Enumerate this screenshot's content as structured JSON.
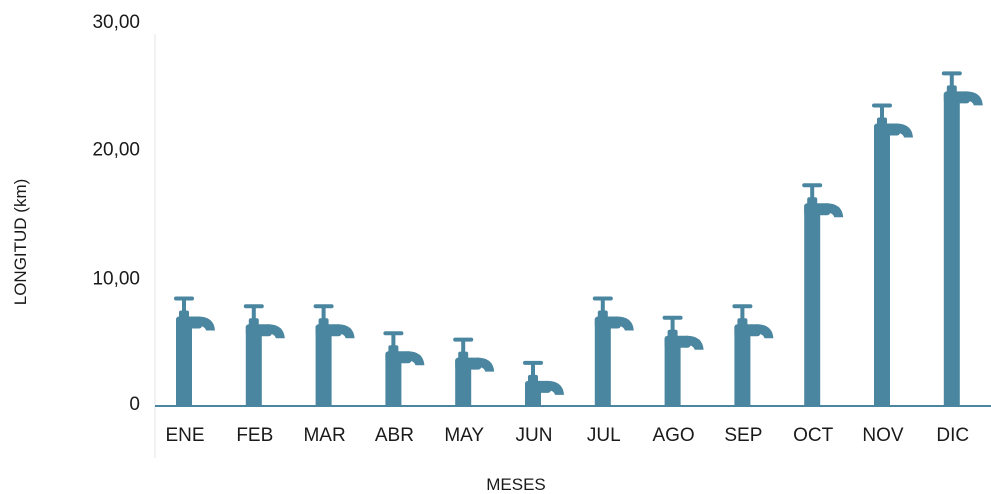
{
  "chart_data": {
    "type": "bar",
    "title": "",
    "xlabel": "MESES",
    "ylabel": "LONGITUD  (km)",
    "ylim": [
      0,
      30
    ],
    "yticks": [
      {
        "value": 0,
        "label": "0"
      },
      {
        "value": 10,
        "label": "10,00"
      },
      {
        "value": 20,
        "label": "20,00"
      },
      {
        "value": 30,
        "label": "30,00"
      }
    ],
    "categories": [
      "ENE",
      "FEB",
      "MAR",
      "ABR",
      "MAY",
      "JUN",
      "JUL",
      "AGO",
      "SEP",
      "OCT",
      "NOV",
      "DIC"
    ],
    "values": [
      6.8,
      6.2,
      6.2,
      4.1,
      3.6,
      1.8,
      6.8,
      5.3,
      6.2,
      15.6,
      21.8,
      24.3
    ],
    "bar_style": "faucet",
    "bar_color": "#4b86a0",
    "axis_color": "#4b86a0",
    "grid": false
  }
}
